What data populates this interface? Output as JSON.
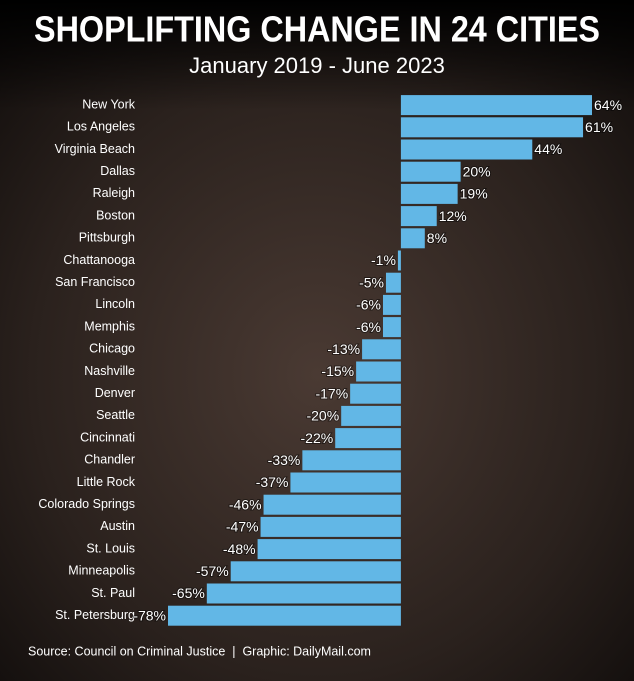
{
  "chart_data": {
    "type": "bar",
    "orientation": "horizontal",
    "title": "SHOPLIFTING CHANGE IN 24 CITIES",
    "subtitle": "January 2019 - June 2023",
    "source": "Source: Council on Criminal Justice  |  Graphic: DailyMail.com",
    "color": "#62b7e6",
    "categories": [
      "New York",
      "Los Angeles",
      "Virginia Beach",
      "Dallas",
      "Raleigh",
      "Boston",
      "Pittsburgh",
      "Chattanooga",
      "San Francisco",
      "Lincoln",
      "Memphis",
      "Chicago",
      "Nashville",
      "Denver",
      "Seattle",
      "Cincinnati",
      "Chandler",
      "Little Rock",
      "Colorado Springs",
      "Austin",
      "St. Louis",
      "Minneapolis",
      "St. Paul",
      "St. Petersburg"
    ],
    "values": [
      64,
      61,
      44,
      20,
      19,
      12,
      8,
      -1,
      -5,
      -6,
      -6,
      -13,
      -15,
      -17,
      -20,
      -22,
      -33,
      -37,
      -46,
      -47,
      -48,
      -57,
      -65,
      -78
    ],
    "value_labels": [
      "64%",
      "61%",
      "44%",
      "20%",
      "19%",
      "12%",
      "8%",
      "-1%",
      "-5%",
      "-6%",
      "-6%",
      "-13%",
      "-15%",
      "-17%",
      "-20%",
      "-22%",
      "-33%",
      "-37%",
      "-46%",
      "-47%",
      "-48%",
      "-57%",
      "-65%",
      "-78%"
    ]
  }
}
